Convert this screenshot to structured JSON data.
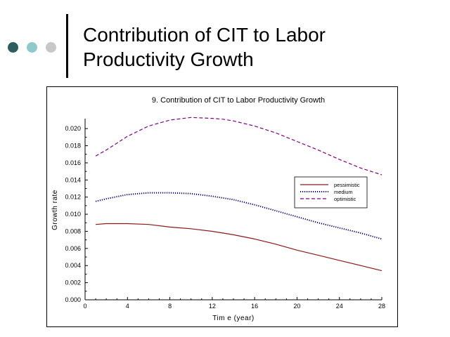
{
  "slide": {
    "title_line1": "Contribution of CIT to Labor",
    "title_line2": "Productivity Growth",
    "colors": {
      "dot1": "#2f5d5f",
      "dot2": "#8fc9cc",
      "dot3": "#c8c8c8"
    }
  },
  "chart_data": {
    "type": "line",
    "title": "9.  Contribution of CIT to Labor Productivity Growth",
    "xlabel": "Tim e (year)",
    "ylabel": "Growth rate",
    "xlim": [
      0,
      28
    ],
    "ylim": [
      0,
      0.021
    ],
    "xticks": [
      "0",
      "4",
      "8",
      "12",
      "16",
      "20",
      "24",
      "28"
    ],
    "yticks": [
      "0.000",
      "0.002",
      "0.004",
      "0.006",
      "0.008",
      "0.010",
      "0.012",
      "0.014",
      "0.016",
      "0.018",
      "0.020"
    ],
    "grid": false,
    "legend": "right",
    "x": [
      1,
      2,
      4,
      6,
      8,
      10,
      12,
      13,
      14,
      16,
      18,
      20,
      22,
      24,
      26,
      28
    ],
    "series": [
      {
        "name": "pessimistic",
        "style": "solid",
        "color": "#8b1a1a",
        "values": [
          0.0088,
          0.0089,
          0.0089,
          0.0088,
          0.0085,
          0.0083,
          0.008,
          0.0078,
          0.0076,
          0.0071,
          0.0065,
          0.0058,
          0.0052,
          0.0046,
          0.004,
          0.0034
        ]
      },
      {
        "name": "medium",
        "style": "dotted",
        "color": "#000080",
        "values": [
          0.0115,
          0.0118,
          0.0123,
          0.0125,
          0.0125,
          0.0124,
          0.0121,
          0.0119,
          0.0117,
          0.0111,
          0.0104,
          0.0097,
          0.009,
          0.0084,
          0.0078,
          0.0071
        ]
      },
      {
        "name": "optimistic",
        "style": "dashed",
        "color": "#800080",
        "values": [
          0.0168,
          0.0175,
          0.0191,
          0.0203,
          0.021,
          0.0213,
          0.0212,
          0.0211,
          0.0209,
          0.0203,
          0.0195,
          0.0185,
          0.0175,
          0.0164,
          0.0154,
          0.0146
        ]
      }
    ]
  }
}
